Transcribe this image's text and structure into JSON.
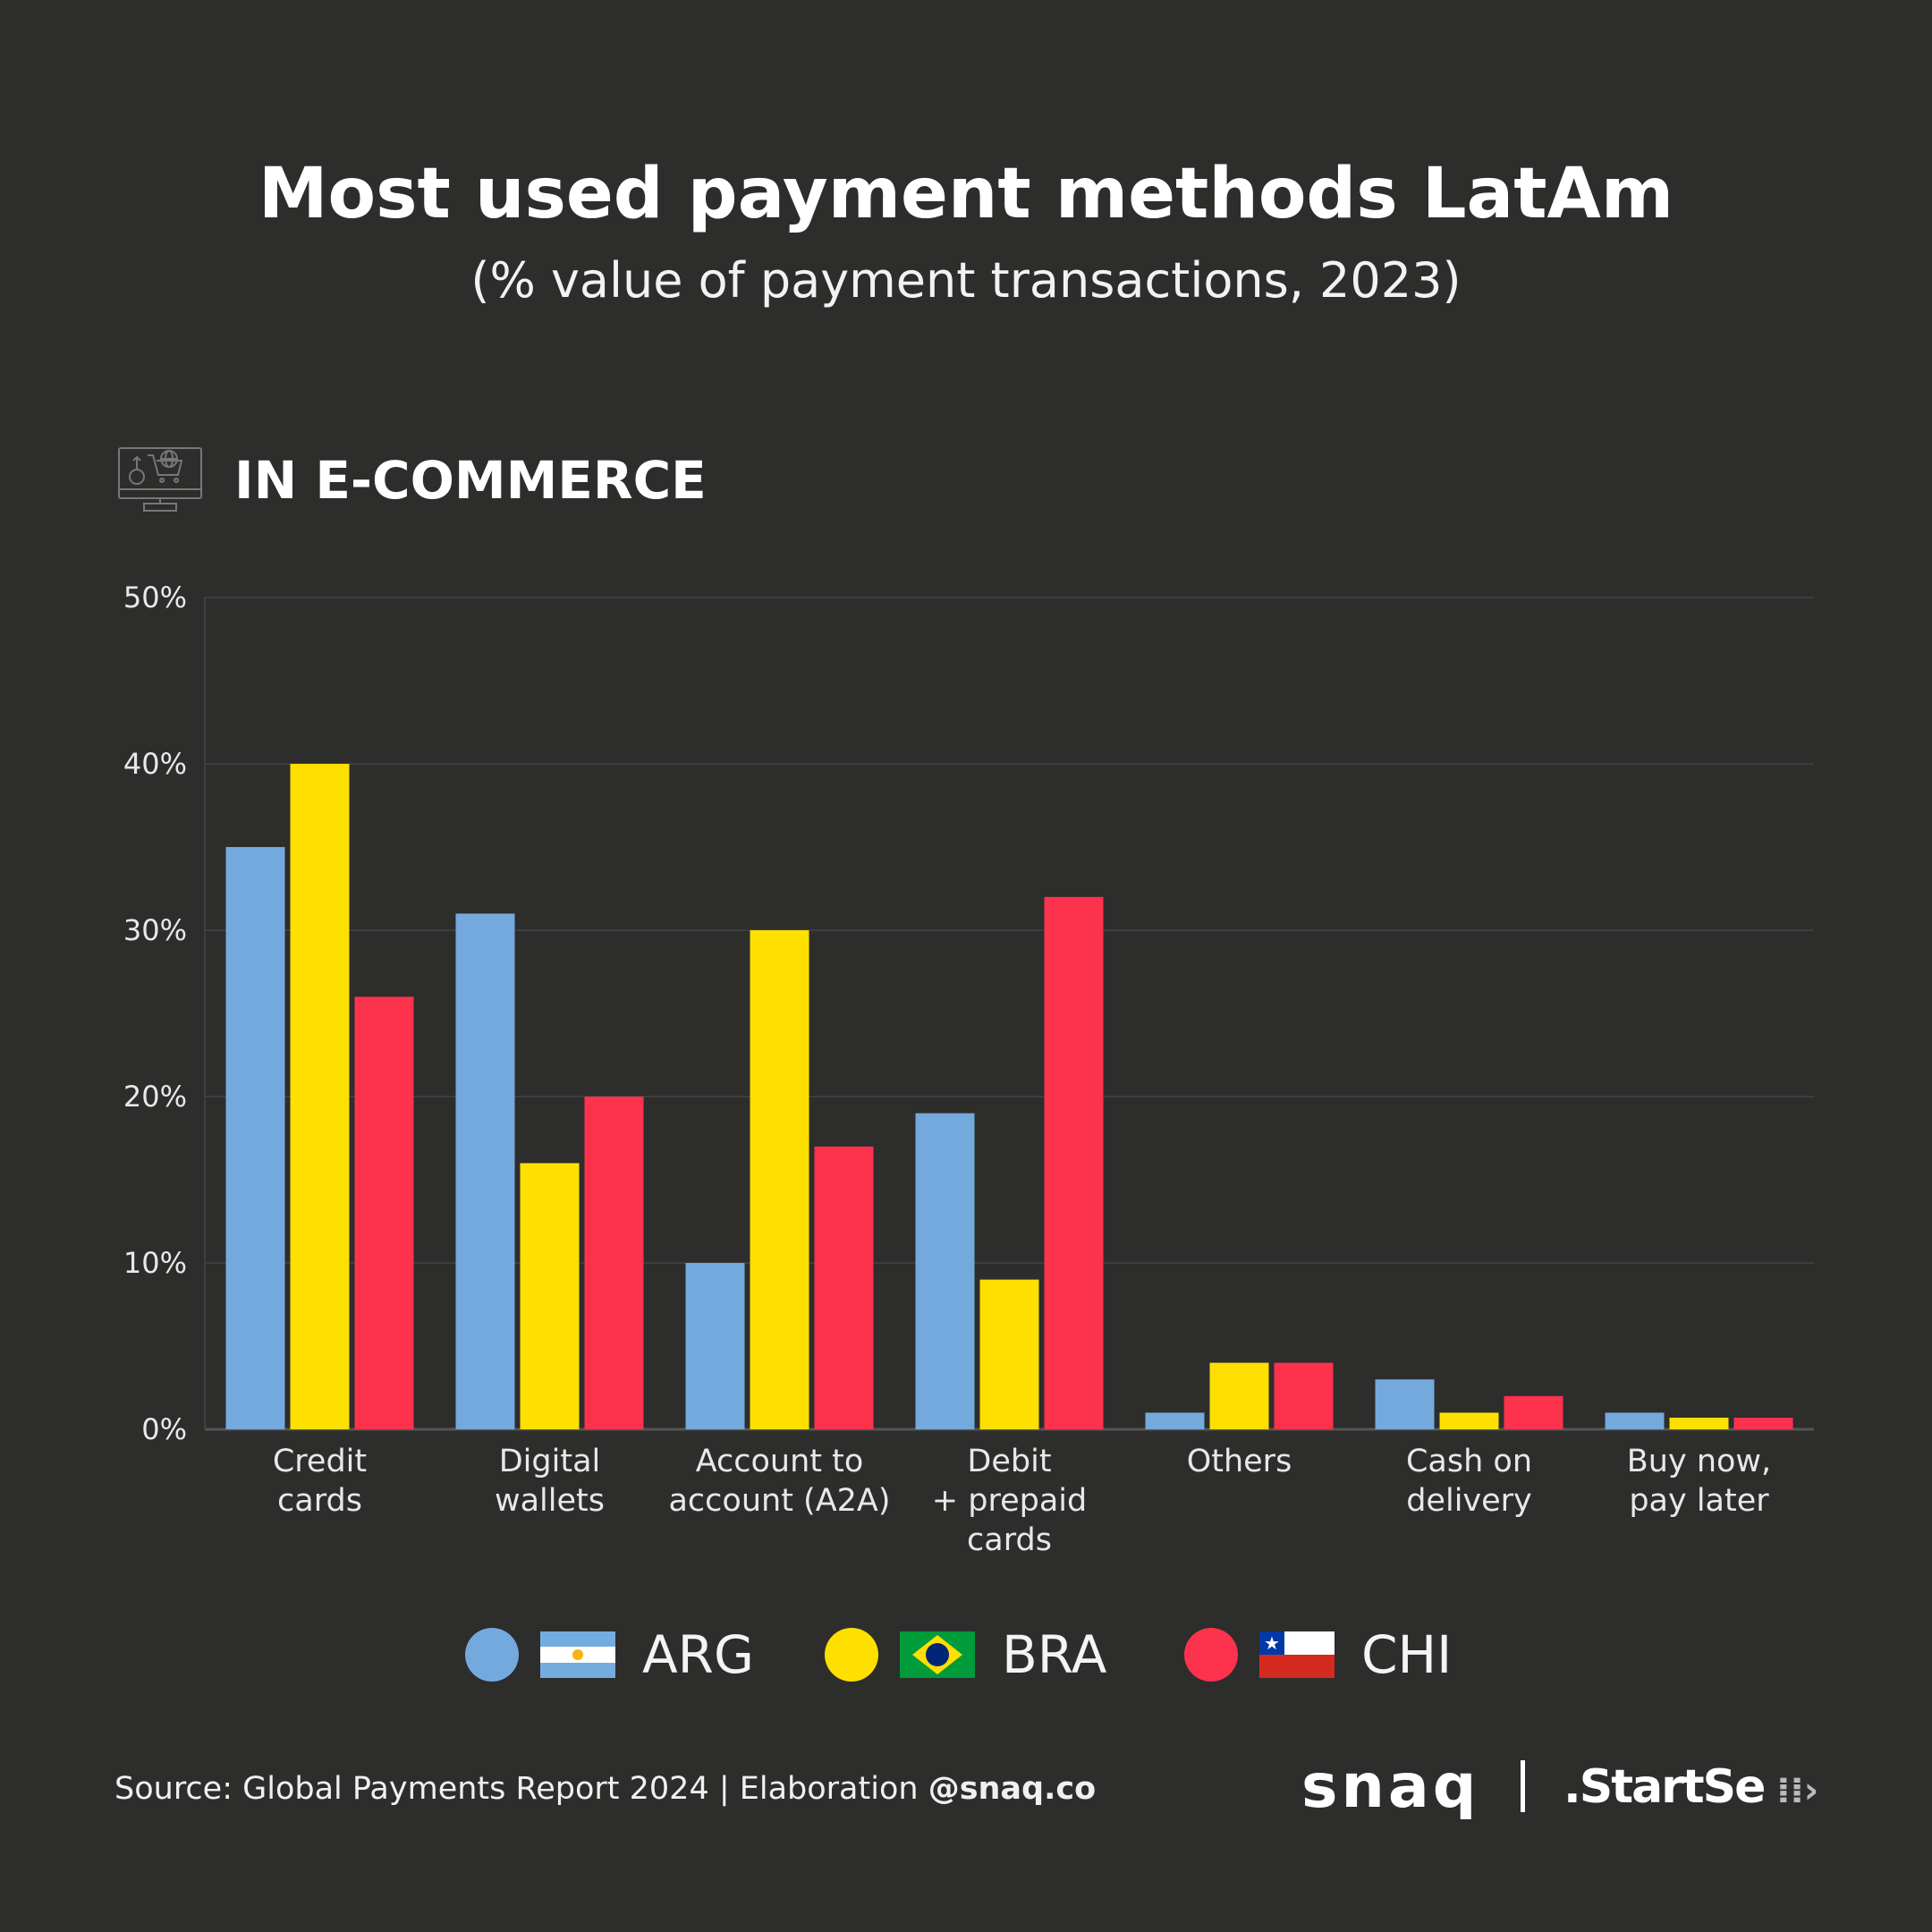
{
  "header": {
    "title": "Most used payment methods LatAm",
    "subtitle": "(% value of payment transactions, 2023)"
  },
  "section": {
    "title": "IN E-COMMERCE",
    "icon": "ecommerce-monitor-cart-icon"
  },
  "chart_data": {
    "type": "bar",
    "title": "Most used payment methods LatAm",
    "subtitle": "(% value of payment transactions, 2023)",
    "xlabel": "",
    "ylabel": "",
    "ylim": [
      0,
      50
    ],
    "yticks": [
      "0%",
      "10%",
      "20%",
      "30%",
      "40%",
      "50%"
    ],
    "grid": true,
    "legend_position": "bottom",
    "categories": [
      "Credit\ncards",
      "Digital\nwallets",
      "Account to\naccount (A2A)",
      "Debit\n+ prepaid\ncards",
      "Others",
      "Cash on\ndelivery",
      "Buy now,\npay later"
    ],
    "series": [
      {
        "name": "ARG",
        "color": "#74a9dd",
        "values": [
          35,
          31,
          10,
          19,
          1,
          3,
          1
        ]
      },
      {
        "name": "BRA",
        "color": "#fde000",
        "values": [
          40,
          16,
          30,
          9,
          4,
          1,
          0.7
        ]
      },
      {
        "name": "CHI",
        "color": "#fd324d",
        "values": [
          26,
          20,
          17,
          32,
          4,
          2,
          0.7
        ]
      }
    ]
  },
  "legend": [
    {
      "label": "ARG",
      "color": "#74a9dd",
      "flag": "argentina-flag-icon"
    },
    {
      "label": "BRA",
      "color": "#fde000",
      "flag": "brazil-flag-icon"
    },
    {
      "label": "CHI",
      "color": "#fd324d",
      "flag": "chile-flag-icon"
    }
  ],
  "footer": {
    "source": "Source: Global Payments Report 2024 | Elaboration ",
    "handle": "@snaq.co",
    "logo_snaq": "snaq",
    "logo_startse": ".StartSe"
  }
}
